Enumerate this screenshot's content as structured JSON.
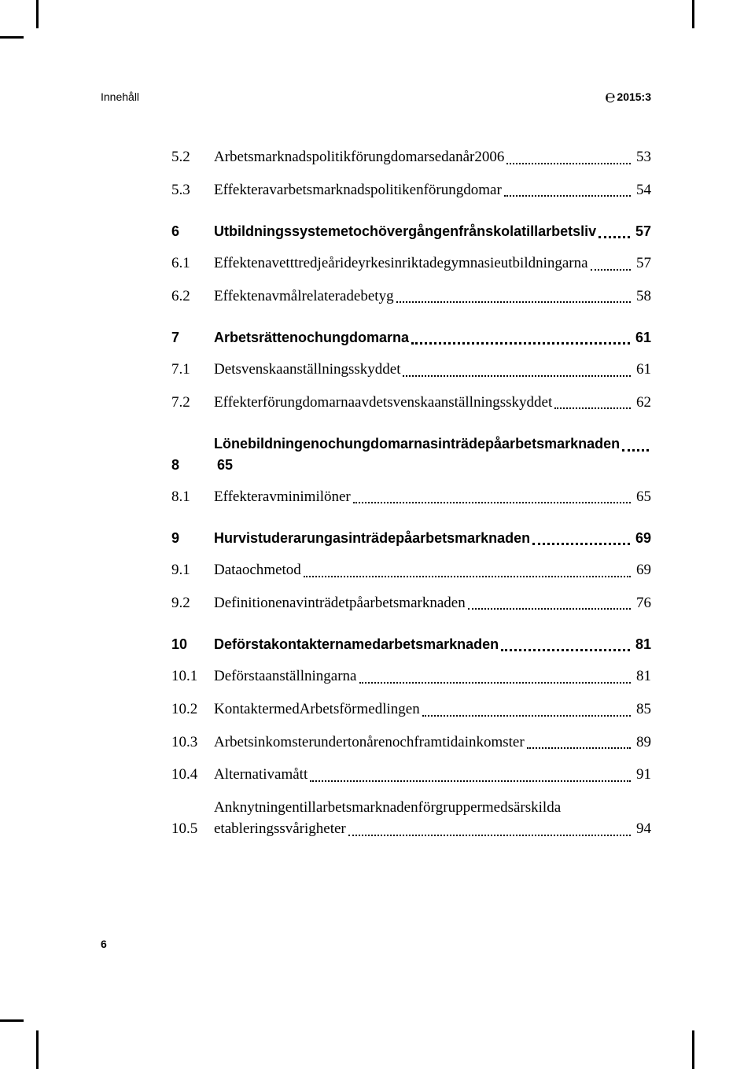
{
  "header": {
    "left": "Innehåll",
    "right": "2015:3"
  },
  "toc": [
    {
      "kind": "section",
      "num": "5.2",
      "title": "Arbetsmarknadspolitik för ungdomar sedan år 2006",
      "page": "53"
    },
    {
      "kind": "section",
      "num": "5.3",
      "title": "Effekter av arbetsmarknadspolitiken för ungdomar",
      "page": "54"
    },
    {
      "kind": "chapter",
      "num": "6",
      "title": "Utbildningssystemet och övergången från skola till arbetsliv",
      "page": "57"
    },
    {
      "kind": "section",
      "num": "6.1",
      "title": "Effekten av ett tredje år i de yrkesinriktade gymnasieutbildningarna",
      "page": "57"
    },
    {
      "kind": "section",
      "num": "6.2",
      "title": "Effekten av målrelaterade betyg",
      "page": "58"
    },
    {
      "kind": "chapter",
      "num": "7",
      "title": "Arbetsrätten och ungdomarna",
      "page": "61"
    },
    {
      "kind": "section",
      "num": "7.1",
      "title": "Det svenska anställningsskyddet",
      "page": "61"
    },
    {
      "kind": "section",
      "num": "7.2",
      "title": "Effekter för ungdomarna av det svenska anställningsskyddet",
      "page": "62"
    },
    {
      "kind": "chapter",
      "num": "8",
      "title": "Lönebildningen och ungdomarnas inträde på arbetsmarknaden",
      "page": "65"
    },
    {
      "kind": "section",
      "num": "8.1",
      "title": "Effekter av minimilöner",
      "page": "65"
    },
    {
      "kind": "chapter",
      "num": "9",
      "title": "Hur vi studerar ungas inträde på arbetsmarknaden",
      "page": "69"
    },
    {
      "kind": "section",
      "num": "9.1",
      "title": "Data och metod",
      "page": "69"
    },
    {
      "kind": "section",
      "num": "9.2",
      "title": "Definitionen av inträdet på arbetsmarknaden",
      "page": "76"
    },
    {
      "kind": "chapter",
      "num": "10",
      "title": "De första kontakterna med arbetsmarknaden",
      "page": "81"
    },
    {
      "kind": "section",
      "num": "10.1",
      "title": "De första anställningarna",
      "page": "81"
    },
    {
      "kind": "section",
      "num": "10.2",
      "title": "Kontakter med Arbetsförmedlingen",
      "page": "85"
    },
    {
      "kind": "section",
      "num": "10.3",
      "title": "Arbetsinkomster under tonåren och framtida inkomster",
      "page": "89"
    },
    {
      "kind": "section",
      "num": "10.4",
      "title": "Alternativa mått",
      "page": "91"
    },
    {
      "kind": "section",
      "num": "10.5",
      "title": "Anknytningen till arbetsmarknaden för grupper med särskilda etableringssvårigheter",
      "page": "94"
    }
  ],
  "pageNumber": "6"
}
